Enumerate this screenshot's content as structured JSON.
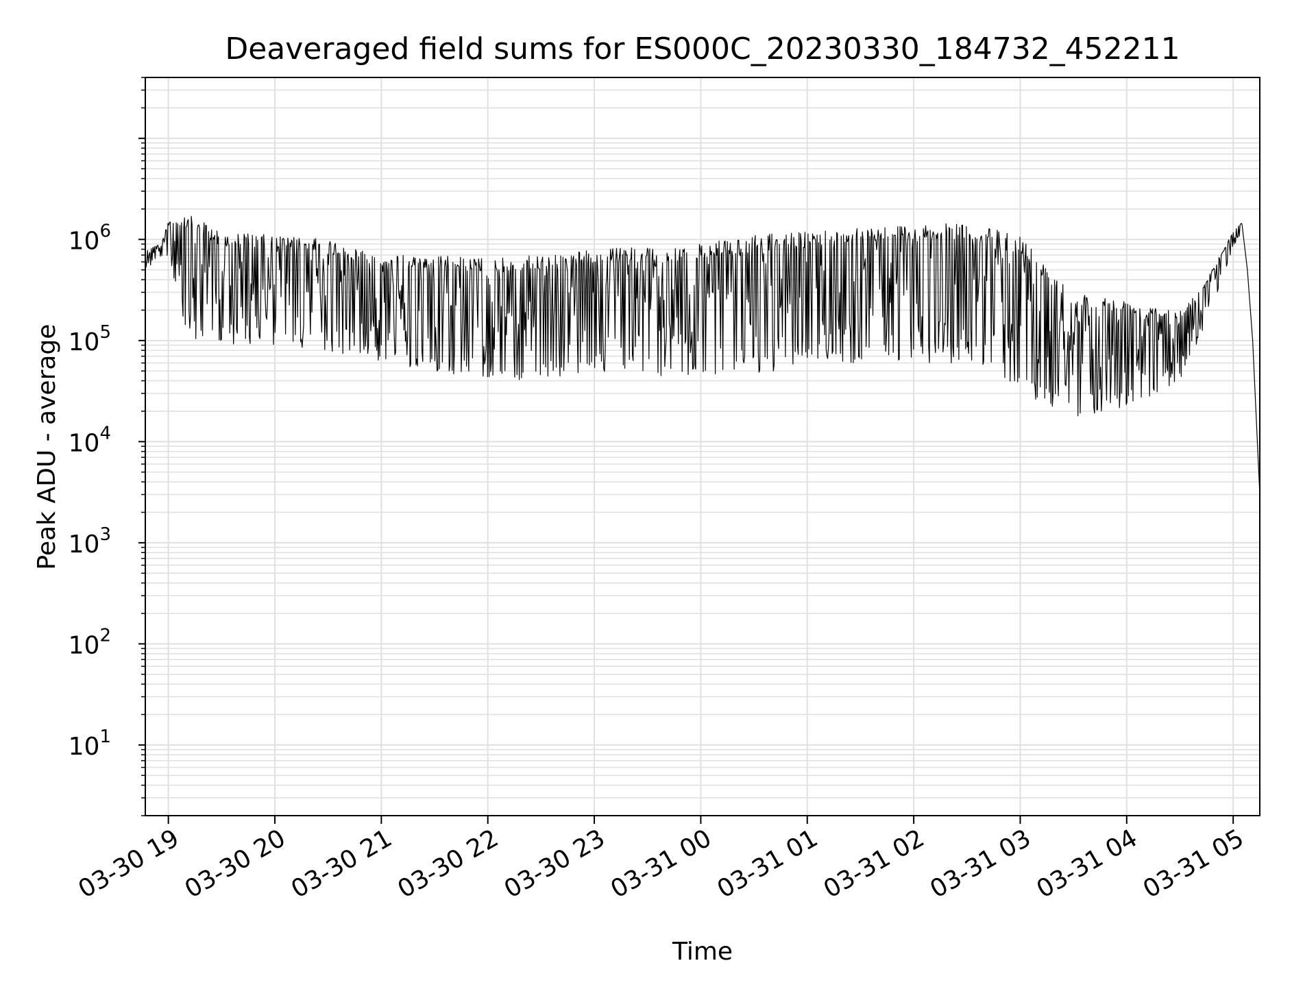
{
  "chart_data": {
    "type": "line",
    "title": "Deaveraged field sums for ES000C_20230330_184732_452211",
    "xlabel": "Time",
    "ylabel": "Peak ADU - average",
    "yscale": "log",
    "ylim": [
      2,
      40000000
    ],
    "xlim": [
      "2023-03-30 18:47",
      "2023-03-31 05:15"
    ],
    "grid": true,
    "line_color": "#000000",
    "grid_color": "#e0e0e0",
    "x_ticks": [
      {
        "t": "2023-03-30 19:00",
        "label": "03-30 19"
      },
      {
        "t": "2023-03-30 20:00",
        "label": "03-30 20"
      },
      {
        "t": "2023-03-30 21:00",
        "label": "03-30 21"
      },
      {
        "t": "2023-03-30 22:00",
        "label": "03-30 22"
      },
      {
        "t": "2023-03-30 23:00",
        "label": "03-30 23"
      },
      {
        "t": "2023-03-31 00:00",
        "label": "03-31 00"
      },
      {
        "t": "2023-03-31 01:00",
        "label": "03-31 01"
      },
      {
        "t": "2023-03-31 02:00",
        "label": "03-31 02"
      },
      {
        "t": "2023-03-31 03:00",
        "label": "03-31 03"
      },
      {
        "t": "2023-03-31 04:00",
        "label": "03-31 04"
      },
      {
        "t": "2023-03-31 05:00",
        "label": "03-31 05"
      }
    ],
    "y_ticks": [
      {
        "value": 10,
        "base": "10",
        "exp": "1"
      },
      {
        "value": 100,
        "base": "10",
        "exp": "2"
      },
      {
        "value": 1000,
        "base": "10",
        "exp": "3"
      },
      {
        "value": 10000,
        "base": "10",
        "exp": "4"
      },
      {
        "value": 100000,
        "base": "10",
        "exp": "5"
      },
      {
        "value": 1000000,
        "base": "10",
        "exp": "6"
      }
    ],
    "series": [
      {
        "envelope": [
          {
            "t": "2023-03-30 18:47",
            "upper": 800000,
            "lower": 500000
          },
          {
            "t": "2023-03-30 18:55",
            "upper": 900000,
            "lower": 650000
          },
          {
            "t": "2023-03-30 19:00",
            "upper": 1500000,
            "lower": 700000
          },
          {
            "t": "2023-03-30 19:10",
            "upper": 1800000,
            "lower": 100000
          },
          {
            "t": "2023-03-30 19:30",
            "upper": 1200000,
            "lower": 90000
          },
          {
            "t": "2023-03-30 20:00",
            "upper": 1100000,
            "lower": 90000
          },
          {
            "t": "2023-03-30 20:30",
            "upper": 1000000,
            "lower": 80000
          },
          {
            "t": "2023-03-30 21:00",
            "upper": 700000,
            "lower": 60000
          },
          {
            "t": "2023-03-30 21:30",
            "upper": 700000,
            "lower": 50000
          },
          {
            "t": "2023-03-30 22:00",
            "upper": 650000,
            "lower": 40000
          },
          {
            "t": "2023-03-30 22:30",
            "upper": 700000,
            "lower": 40000
          },
          {
            "t": "2023-03-30 23:00",
            "upper": 800000,
            "lower": 50000
          },
          {
            "t": "2023-03-30 23:30",
            "upper": 850000,
            "lower": 45000
          },
          {
            "t": "2023-03-31 00:00",
            "upper": 900000,
            "lower": 45000
          },
          {
            "t": "2023-03-31 00:30",
            "upper": 1100000,
            "lower": 45000
          },
          {
            "t": "2023-03-31 01:00",
            "upper": 1200000,
            "lower": 60000
          },
          {
            "t": "2023-03-31 01:30",
            "upper": 1350000,
            "lower": 60000
          },
          {
            "t": "2023-03-31 02:00",
            "upper": 1400000,
            "lower": 60000
          },
          {
            "t": "2023-03-31 02:30",
            "upper": 1450000,
            "lower": 60000
          },
          {
            "t": "2023-03-31 03:00",
            "upper": 1100000,
            "lower": 30000
          },
          {
            "t": "2023-03-31 03:30",
            "upper": 300000,
            "lower": 17000
          },
          {
            "t": "2023-03-31 04:00",
            "upper": 250000,
            "lower": 20000
          },
          {
            "t": "2023-03-31 04:30",
            "upper": 200000,
            "lower": 40000
          },
          {
            "t": "2023-03-31 04:45",
            "upper": 400000,
            "lower": 150000
          },
          {
            "t": "2023-03-31 05:00",
            "upper": 1200000,
            "lower": 800000
          },
          {
            "t": "2023-03-31 05:05",
            "upper": 1500000,
            "lower": 1200000
          }
        ],
        "tail": [
          {
            "t": "2023-03-31 05:05",
            "value": 1400000
          },
          {
            "t": "2023-03-31 05:08",
            "value": 500000
          },
          {
            "t": "2023-03-31 05:11",
            "value": 100000
          },
          {
            "t": "2023-03-31 05:15",
            "value": 3000
          }
        ]
      }
    ]
  }
}
